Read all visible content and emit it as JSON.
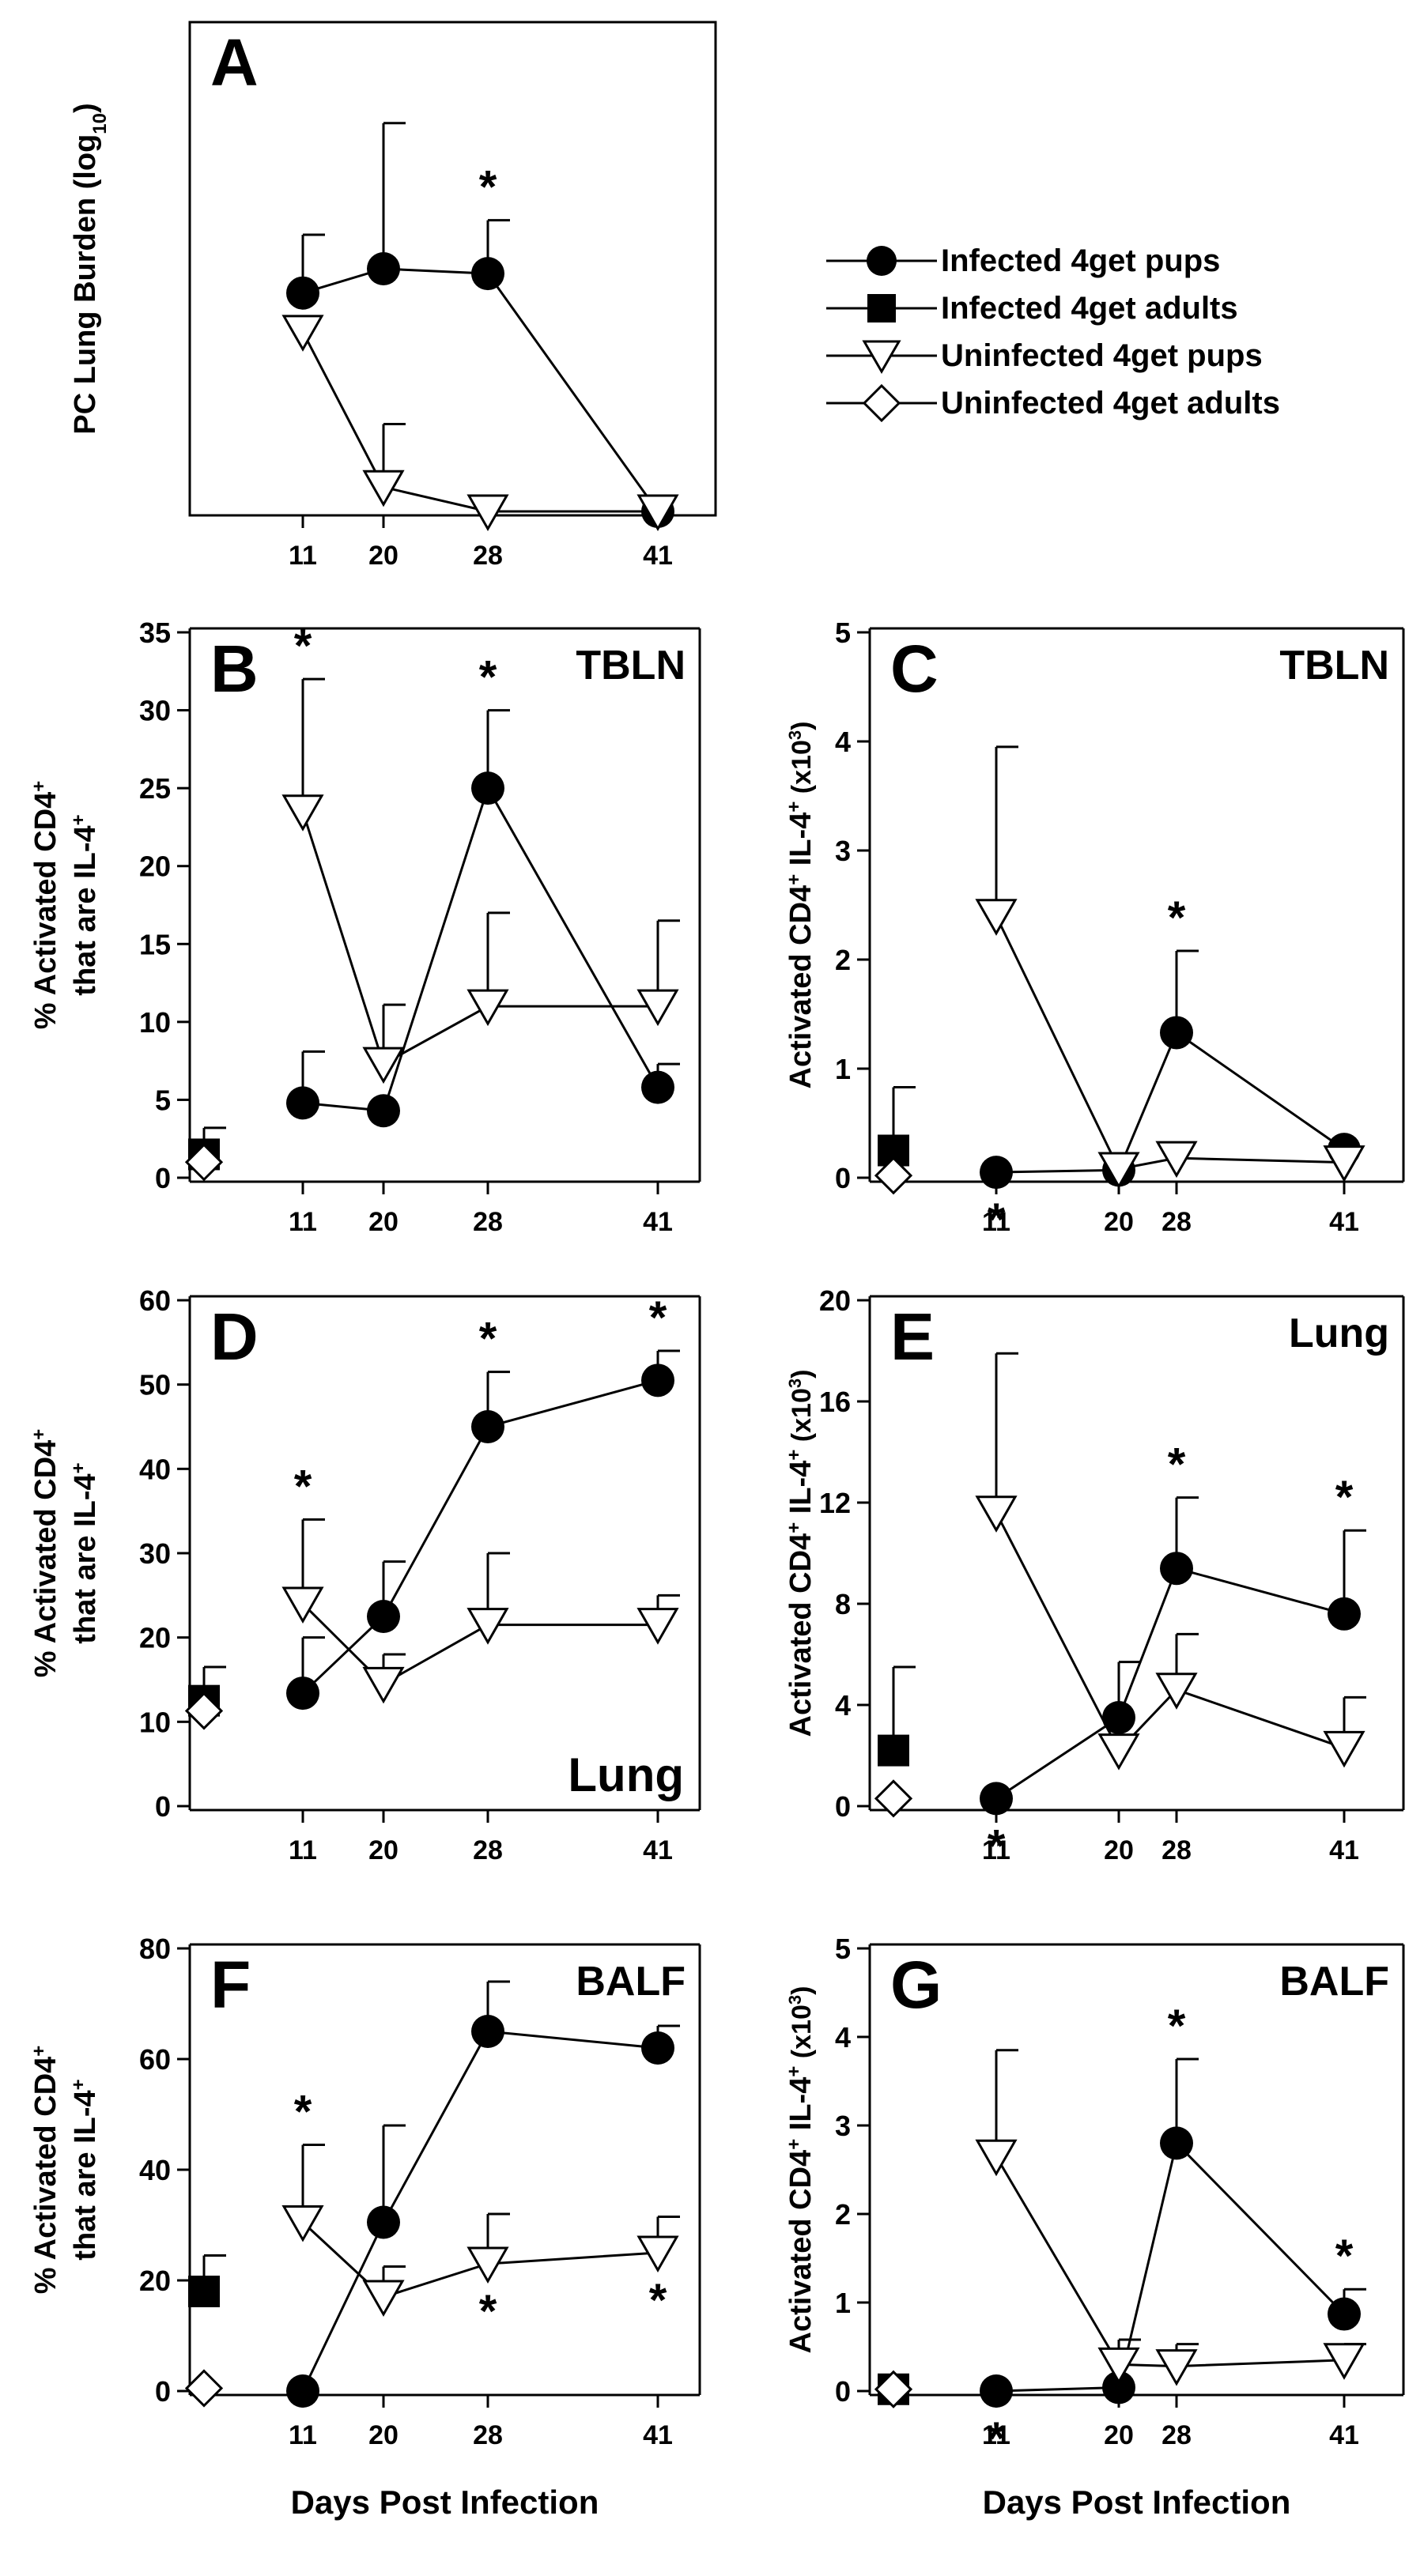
{
  "legend": {
    "items": [
      {
        "label": "Infected 4get pups",
        "marker": "filled-circle"
      },
      {
        "label": "Infected 4get adults",
        "marker": "filled-square"
      },
      {
        "label": "Uninfected 4get pups",
        "marker": "open-triangle-down"
      },
      {
        "label": "Uninfected 4get adults",
        "marker": "open-diamond"
      }
    ]
  },
  "chart_data": [
    {
      "type": "line",
      "panel": "A",
      "panel_label": "A",
      "tissue_label": "",
      "ylabel": "PC Lung Burden (log",
      "ylabel_sub": "10",
      "ylabel_end": ")",
      "xlabel": "",
      "ylim": [
        0,
        100
      ],
      "yticks": [],
      "xticks": [
        11,
        20,
        28,
        41
      ],
      "xlim": [
        0,
        50
      ],
      "series": [
        {
          "marker": "filled-circle",
          "x": [
            11,
            20,
            28,
            41
          ],
          "y": [
            45,
            50,
            49,
            0
          ],
          "err": [
            12,
            30,
            11,
            0
          ]
        },
        {
          "marker": "open-triangle-down",
          "x": [
            11,
            20,
            28,
            41
          ],
          "y": [
            37,
            5,
            0,
            0
          ],
          "err": [
            0,
            13,
            0,
            0
          ]
        }
      ],
      "significance": [
        {
          "x": 28,
          "position": "above",
          "text": "*"
        }
      ]
    },
    {
      "type": "line",
      "panel": "B",
      "panel_label": "B",
      "tissue_label": "TBLN",
      "ylabel": "% Activated CD4+ that are IL-4+",
      "xlabel": "",
      "ylim": [
        0,
        35
      ],
      "yticks": [
        0,
        5,
        10,
        15,
        20,
        25,
        30,
        35
      ],
      "xticks": [
        11,
        20,
        28,
        41
      ],
      "xlim": [
        0,
        50
      ],
      "series": [
        {
          "marker": "filled-circle",
          "x": [
            11,
            20,
            28,
            41
          ],
          "y": [
            4.8,
            4.3,
            25,
            5.8
          ],
          "err": [
            3.3,
            0,
            5,
            1.5
          ]
        },
        {
          "marker": "open-triangle-down",
          "x": [
            11,
            20,
            28,
            41
          ],
          "y": [
            23.5,
            7.3,
            11,
            11
          ],
          "err": [
            8.5,
            3.8,
            6,
            5.5
          ]
        }
      ],
      "adults": [
        {
          "marker": "filled-square",
          "x": 0,
          "y": 1.5,
          "err": 1.7
        },
        {
          "marker": "open-diamond",
          "x": 0,
          "y": 1,
          "err": 0
        }
      ],
      "significance": [
        {
          "x": 11,
          "position": "above",
          "text": "*"
        },
        {
          "x": 28,
          "position": "above",
          "text": "*"
        }
      ]
    },
    {
      "type": "line",
      "panel": "C",
      "panel_label": "C",
      "tissue_label": "TBLN",
      "ylabel": "Activated CD4+ IL-4+ (x10",
      "ylabel_sup": "3",
      "ylabel_end": ")",
      "xlabel": "",
      "ylim": [
        0,
        5
      ],
      "yticks": [
        0,
        1,
        2,
        3,
        4,
        5
      ],
      "xticks": [
        11,
        20,
        28,
        41
      ],
      "xlim": [
        0,
        50
      ],
      "series": [
        {
          "marker": "filled-circle",
          "x": [
            11,
            20,
            28,
            41
          ],
          "y": [
            0.05,
            0.07,
            1.33,
            0.26
          ],
          "err": [
            0,
            0,
            0.75,
            0
          ]
        },
        {
          "marker": "open-triangle-down",
          "x": [
            11,
            20,
            28,
            41
          ],
          "y": [
            2.4,
            0.08,
            0.18,
            0.14
          ],
          "err": [
            1.55,
            0,
            0,
            0
          ]
        }
      ],
      "adults": [
        {
          "marker": "filled-square",
          "x": 0,
          "y": 0.25,
          "err": 0.58
        },
        {
          "marker": "open-diamond",
          "x": 0,
          "y": 0.02,
          "err": 0
        }
      ],
      "significance": [
        {
          "x": 11,
          "position": "below",
          "text": "*"
        },
        {
          "x": 28,
          "position": "above",
          "text": "*"
        }
      ]
    },
    {
      "type": "line",
      "panel": "D",
      "panel_label": "D",
      "tissue_label": "Lung",
      "tissue_position": "bottom-right",
      "ylabel": "% Activated CD4+ that are IL-4+",
      "xlabel": "",
      "ylim": [
        0,
        60
      ],
      "yticks": [
        0,
        10,
        20,
        30,
        40,
        50,
        60
      ],
      "xticks": [
        11,
        20,
        28,
        41
      ],
      "xlim": [
        0,
        50
      ],
      "series": [
        {
          "marker": "filled-circle",
          "x": [
            11,
            20,
            28,
            41
          ],
          "y": [
            13.4,
            22.5,
            45,
            50.5
          ],
          "err": [
            6.6,
            6.5,
            6.5,
            3.5
          ]
        },
        {
          "marker": "open-triangle-down",
          "x": [
            11,
            20,
            28,
            41
          ],
          "y": [
            24,
            14.5,
            21.5,
            21.5
          ],
          "err": [
            10,
            3.5,
            8.5,
            3.5
          ]
        }
      ],
      "adults": [
        {
          "marker": "filled-square",
          "x": 0,
          "y": 12.5,
          "err": 4
        },
        {
          "marker": "open-diamond",
          "x": 0,
          "y": 11.3,
          "err": 0
        }
      ],
      "significance": [
        {
          "x": 11,
          "position": "above",
          "text": "*"
        },
        {
          "x": 28,
          "position": "above",
          "text": "*"
        },
        {
          "x": 41,
          "position": "above",
          "text": "*"
        }
      ]
    },
    {
      "type": "line",
      "panel": "E",
      "panel_label": "E",
      "tissue_label": "Lung",
      "ylabel": "Activated CD4+ IL-4+ (x10",
      "ylabel_sup": "3",
      "ylabel_end": ")",
      "xlabel": "",
      "ylim": [
        0,
        20
      ],
      "yticks": [
        0,
        4,
        8,
        12,
        16,
        20
      ],
      "xticks": [
        11,
        20,
        28,
        41
      ],
      "xlim": [
        0,
        50
      ],
      "series": [
        {
          "marker": "filled-circle",
          "x": [
            11,
            20,
            28,
            41
          ],
          "y": [
            0.3,
            3.5,
            9.4,
            7.6
          ],
          "err": [
            0,
            2.2,
            2.8,
            3.3
          ]
        },
        {
          "marker": "open-triangle-down",
          "x": [
            11,
            20,
            28,
            41
          ],
          "y": [
            11.6,
            2.2,
            4.6,
            2.3
          ],
          "err": [
            6.3,
            0,
            2.2,
            2
          ]
        }
      ],
      "adults": [
        {
          "marker": "filled-square",
          "x": 0,
          "y": 2.2,
          "err": 3.3
        },
        {
          "marker": "open-diamond",
          "x": 0,
          "y": 0.3,
          "err": 0
        }
      ],
      "significance": [
        {
          "x": 11,
          "position": "below",
          "text": "*"
        },
        {
          "x": 28,
          "position": "above",
          "text": "*"
        },
        {
          "x": 41,
          "position": "above",
          "text": "*"
        }
      ]
    },
    {
      "type": "line",
      "panel": "F",
      "panel_label": "F",
      "tissue_label": "BALF",
      "ylabel": "% Activated CD4+ that are IL-4+",
      "xlabel": "Days Post Infection",
      "ylim": [
        0,
        80
      ],
      "yticks": [
        0,
        20,
        40,
        60,
        80
      ],
      "xticks": [
        11,
        20,
        28,
        41
      ],
      "xlim": [
        0,
        50
      ],
      "series": [
        {
          "marker": "filled-circle",
          "x": [
            11,
            20,
            28,
            41
          ],
          "y": [
            0,
            30.5,
            65,
            62
          ],
          "err": [
            0,
            17.5,
            9,
            4
          ]
        },
        {
          "marker": "open-triangle-down",
          "x": [
            11,
            20,
            28,
            41
          ],
          "y": [
            30.5,
            17,
            23,
            25
          ],
          "err": [
            14,
            5.5,
            9,
            6.5
          ]
        }
      ],
      "adults": [
        {
          "marker": "filled-square",
          "x": 0,
          "y": 18,
          "err": 6.5
        },
        {
          "marker": "open-diamond",
          "x": 0,
          "y": 0.5,
          "err": 0
        }
      ],
      "significance": [
        {
          "x": 11,
          "position": "above",
          "text": "*"
        },
        {
          "x": 28,
          "position": "below",
          "text": "*"
        },
        {
          "x": 41,
          "position": "below",
          "text": "*"
        }
      ]
    },
    {
      "type": "line",
      "panel": "G",
      "panel_label": "G",
      "tissue_label": "BALF",
      "ylabel": "Activated CD4+ IL-4+ (x10",
      "ylabel_sup": "3",
      "ylabel_end": ")",
      "xlabel": "Days Post Infection",
      "ylim": [
        0,
        5
      ],
      "yticks": [
        0,
        1,
        2,
        3,
        4,
        5
      ],
      "xticks": [
        11,
        20,
        28,
        41
      ],
      "xlim": [
        0,
        50
      ],
      "series": [
        {
          "marker": "filled-circle",
          "x": [
            11,
            20,
            28,
            41
          ],
          "y": [
            0,
            0.04,
            2.8,
            0.87
          ],
          "err": [
            0,
            0,
            0.95,
            0.28
          ]
        },
        {
          "marker": "open-triangle-down",
          "x": [
            11,
            20,
            28,
            41
          ],
          "y": [
            2.65,
            0.3,
            0.28,
            0.35
          ],
          "err": [
            1.2,
            0.28,
            0.25,
            0.18
          ]
        }
      ],
      "adults": [
        {
          "marker": "filled-square",
          "x": 0,
          "y": 0.02,
          "err": 0
        },
        {
          "marker": "open-diamond",
          "x": 0,
          "y": 0.02,
          "err": 0
        }
      ],
      "significance": [
        {
          "x": 11,
          "position": "below",
          "text": "*"
        },
        {
          "x": 28,
          "position": "above",
          "text": "*"
        },
        {
          "x": 41,
          "position": "above",
          "text": "*"
        }
      ]
    }
  ]
}
